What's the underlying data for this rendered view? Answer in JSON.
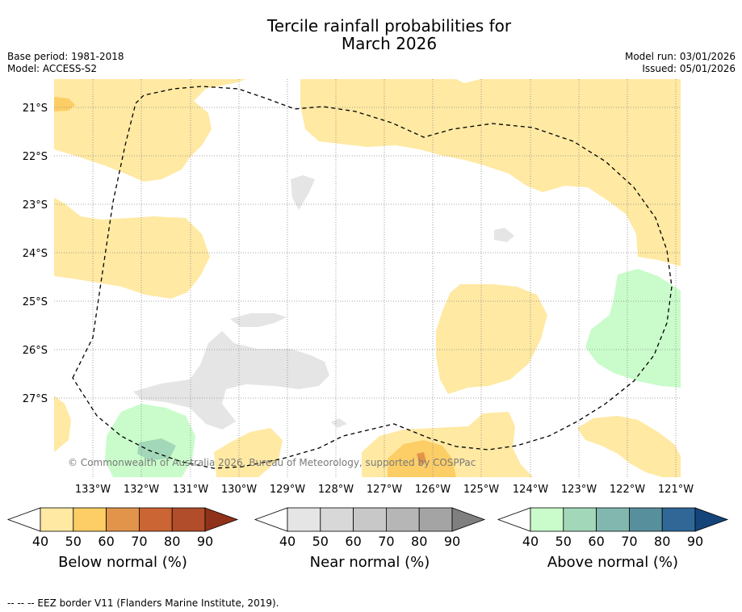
{
  "header": {
    "title_line1": "Tercile rainfall probabilities for",
    "title_line2": "March 2026",
    "base_period": "Base period: 1981-2018",
    "model": "Model: ACCESS-S2",
    "model_run": "Model run: 03/01/2026",
    "issued": "Issued: 05/01/2026"
  },
  "map": {
    "lat_labels": [
      "21°S",
      "22°S",
      "23°S",
      "24°S",
      "25°S",
      "26°S",
      "27°S"
    ],
    "lon_labels": [
      "133°W",
      "132°W",
      "131°W",
      "130°W",
      "129°W",
      "128°W",
      "127°W",
      "126°W",
      "125°W",
      "124°W",
      "123°W",
      "122°W",
      "121°W"
    ],
    "copyright": "© Commonwealth of Australia 2026, Bureau of Meteorology, supported by COSPPac",
    "colors": {
      "below_40": "#ffe9a3",
      "below_50": "#fdcd66",
      "near_40": "#e5e5e5",
      "above_40": "#c9fcca",
      "above_50": "#a2d8b9",
      "eez": "#000000",
      "grid": "#888888"
    }
  },
  "legends": [
    {
      "label": "Below normal (%)",
      "ticks": [
        "40",
        "50",
        "60",
        "70",
        "80",
        "90"
      ],
      "colors": [
        "#ffffff",
        "#ffe9a3",
        "#fdcd66",
        "#e2944b",
        "#cb6534",
        "#b14d2a",
        "#8f3219"
      ]
    },
    {
      "label": "Near normal (%)",
      "ticks": [
        "40",
        "50",
        "60",
        "70",
        "80",
        "90"
      ],
      "colors": [
        "#ffffff",
        "#e5e5e5",
        "#d8d8d8",
        "#c8c8c8",
        "#b6b6b6",
        "#a4a4a4",
        "#7f7f7f"
      ]
    },
    {
      "label": "Above normal (%)",
      "ticks": [
        "40",
        "50",
        "60",
        "70",
        "80",
        "90"
      ],
      "colors": [
        "#ffffff",
        "#c9fcca",
        "#a2d8b9",
        "#82b7af",
        "#578f9d",
        "#306797",
        "#14457a"
      ]
    }
  ],
  "footer": {
    "note": "--  --  -- EEZ border V11 (Flanders Marine Institute, 2019)."
  }
}
